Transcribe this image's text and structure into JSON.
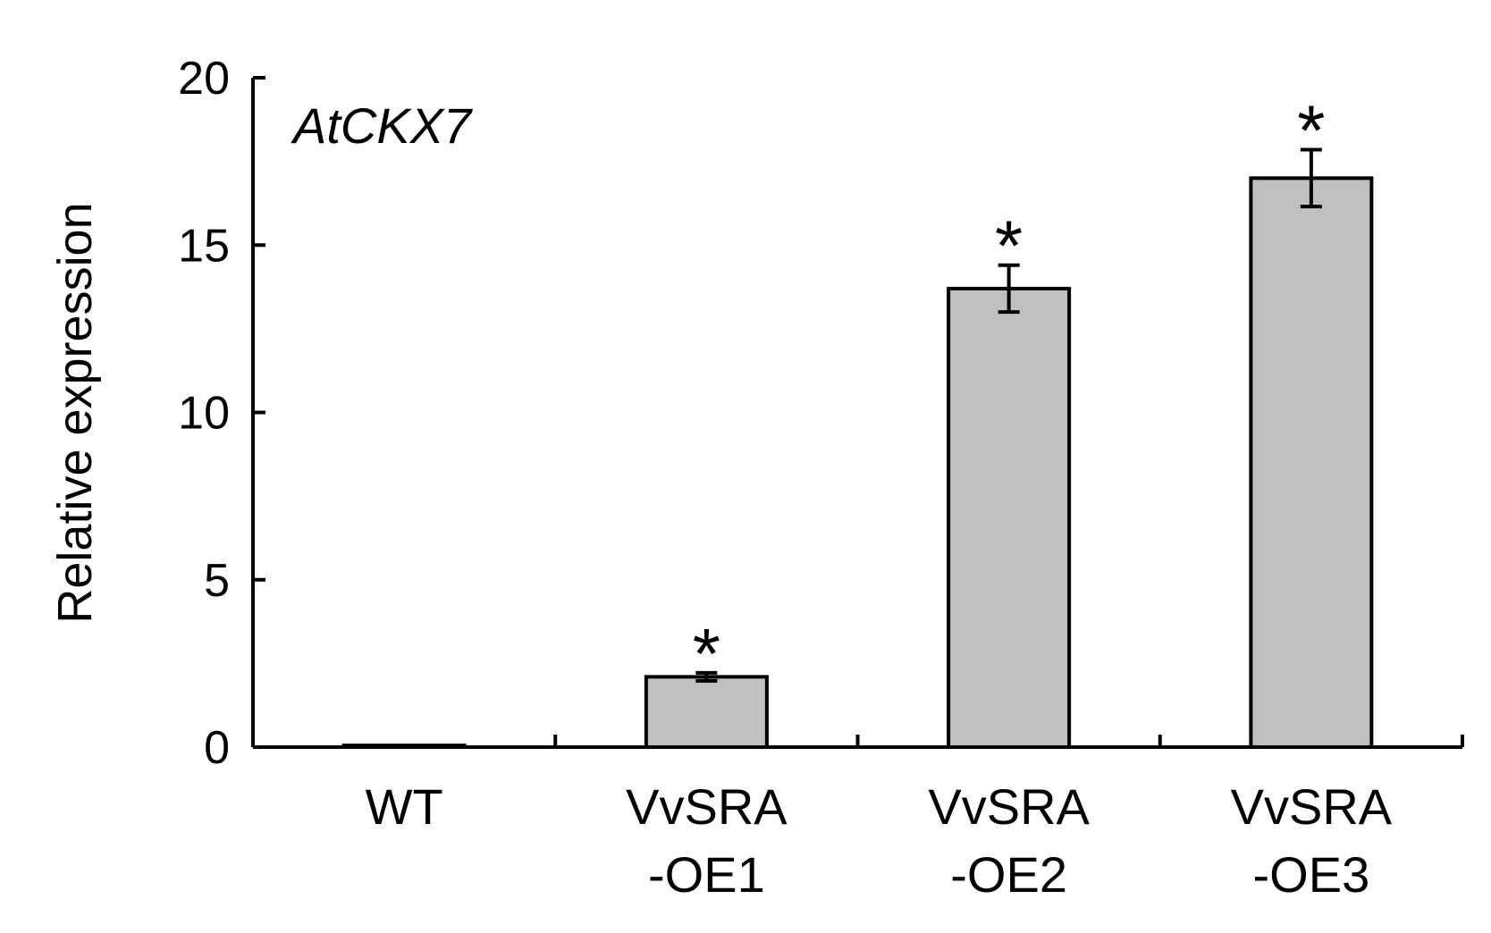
{
  "chart_data": {
    "type": "bar",
    "title": "AtCKX7",
    "ylabel": "Relative expression",
    "xlabel": "",
    "ylim": [
      0,
      20
    ],
    "yticks": [
      0,
      5,
      10,
      15,
      20
    ],
    "grid": false,
    "categories": [
      {
        "line1": "WT",
        "line2": ""
      },
      {
        "line1": "VvSRA",
        "line2": "-OE1"
      },
      {
        "line1": "VvSRA",
        "line2": "-OE2"
      },
      {
        "line1": "VvSRA",
        "line2": "-OE3"
      }
    ],
    "values": [
      0.05,
      2.1,
      13.7,
      17.0
    ],
    "errors": [
      0.0,
      0.12,
      0.7,
      0.85
    ],
    "significance": [
      "",
      "*",
      "*",
      "*"
    ],
    "bar_color": "#c0c0c0",
    "edge_color": "#000000"
  }
}
